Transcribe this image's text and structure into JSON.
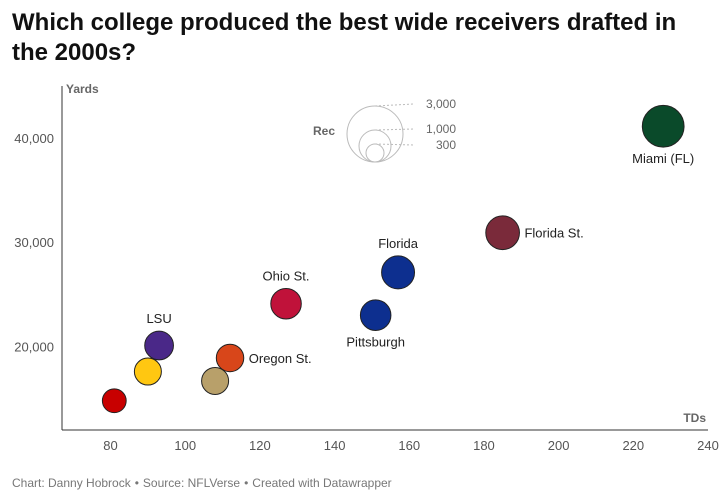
{
  "page": {
    "title": "Which college produced the best wide receivers drafted in the 2000s?",
    "footer": {
      "credit": "Chart: Danny Hobrock",
      "source": "Source: NFLVerse",
      "tool": "Created with Datawrapper",
      "separator": "•"
    }
  },
  "chart_data": {
    "type": "scatter",
    "title": "Which college produced the best wide receivers drafted in the 2000s?",
    "xlabel": "TDs",
    "ylabel": "Yards",
    "xlim": [
      67,
      240
    ],
    "ylim": [
      12000,
      44000
    ],
    "xticks": [
      80,
      100,
      120,
      140,
      160,
      180,
      200,
      220,
      240
    ],
    "yticks": [
      20000,
      30000,
      40000
    ],
    "ytick_labels": [
      "20,000",
      "30,000",
      "40,000"
    ],
    "grid": false,
    "size_variable": "Rec",
    "size_legend": {
      "title": "Rec",
      "values": [
        3000,
        1000,
        300
      ],
      "labels": [
        "3,000",
        "1,000",
        "300"
      ]
    },
    "points": [
      {
        "label": "Miami (FL)",
        "x": 228,
        "y": 41100,
        "rec": 2150,
        "color": "#0a4a2a",
        "label_pos": "below"
      },
      {
        "label": "Florida St.",
        "x": 185,
        "y": 30900,
        "rec": 1400,
        "color": "#7a2a3a",
        "label_pos": "right"
      },
      {
        "label": "Florida",
        "x": 157,
        "y": 27100,
        "rec": 1340,
        "color": "#0d2f8f",
        "label_pos": "above"
      },
      {
        "label": "Pittsburgh",
        "x": 151,
        "y": 23000,
        "rec": 1150,
        "color": "#0d2f8f",
        "label_pos": "below"
      },
      {
        "label": "Ohio St.",
        "x": 127,
        "y": 24100,
        "rec": 1150,
        "color": "#c0123a",
        "label_pos": "above"
      },
      {
        "label": "LSU",
        "x": 93,
        "y": 20100,
        "rec": 1020,
        "color": "#4a2888",
        "label_pos": "above"
      },
      {
        "label": "Oregon St.",
        "x": 112,
        "y": 18900,
        "rec": 930,
        "color": "#d8461a",
        "label_pos": "right"
      },
      {
        "label": "",
        "x": 90,
        "y": 17600,
        "rec": 900,
        "color": "#ffc711",
        "label_pos": "none"
      },
      {
        "label": "",
        "x": 108,
        "y": 16700,
        "rec": 900,
        "color": "#b8a06a",
        "label_pos": "none"
      },
      {
        "label": "",
        "x": 81,
        "y": 14800,
        "rec": 700,
        "color": "#c80000",
        "label_pos": "none"
      }
    ]
  }
}
